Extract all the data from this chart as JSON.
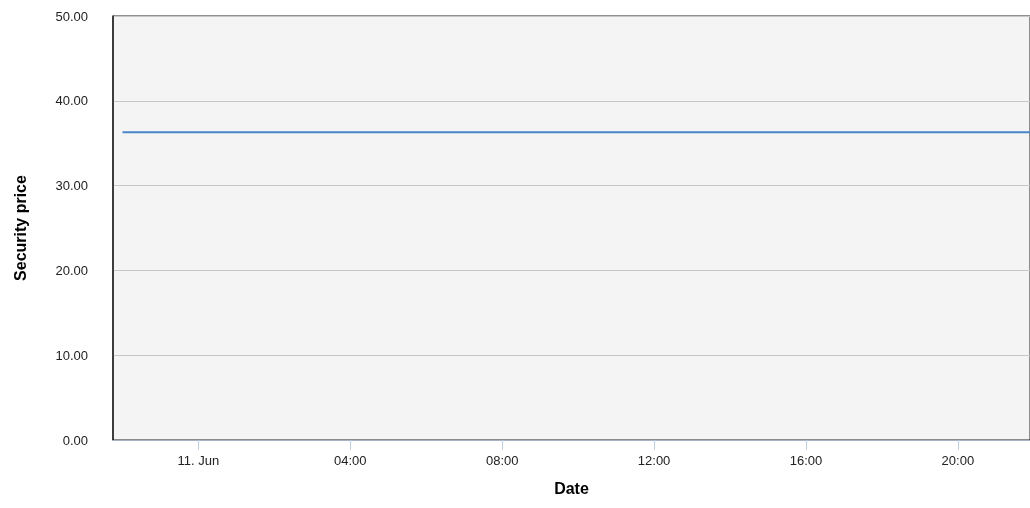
{
  "chart_data": {
    "type": "line",
    "xlabel": "Date",
    "ylabel": "Security price",
    "series": [
      {
        "color": "#4a86c8",
        "x": [
          -2,
          21.9
        ],
        "values": [
          36.3,
          36.3
        ]
      }
    ],
    "xlim": [
      -2.25,
      21.9
    ],
    "xticks": [
      {
        "value": 0,
        "label": "11. Jun"
      },
      {
        "value": 4,
        "label": "04:00"
      },
      {
        "value": 8,
        "label": "08:00"
      },
      {
        "value": 12,
        "label": "12:00"
      },
      {
        "value": 16,
        "label": "16:00"
      },
      {
        "value": 20,
        "label": "20:00"
      }
    ],
    "ylim": [
      0,
      50
    ],
    "yticks": [
      {
        "value": 0,
        "label": "0.00"
      },
      {
        "value": 10,
        "label": "10.00"
      },
      {
        "value": 20,
        "label": "20.00"
      },
      {
        "value": 30,
        "label": "30.00"
      },
      {
        "value": 40,
        "label": "40.00"
      },
      {
        "value": 50,
        "label": "50.00"
      }
    ],
    "grid": "y",
    "marker": "none",
    "line_style": "solid"
  }
}
